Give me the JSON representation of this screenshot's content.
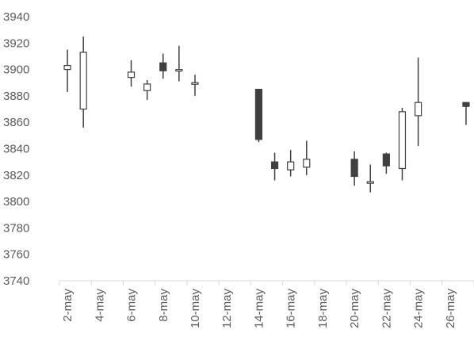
{
  "chart_data": {
    "type": "candlestick",
    "title": "",
    "xlabel": "",
    "ylabel": "",
    "ylim": [
      3740,
      3940
    ],
    "yticks": [
      3740,
      3760,
      3780,
      3800,
      3820,
      3840,
      3860,
      3880,
      3900,
      3920,
      3940
    ],
    "ytick_labels": [
      "3740",
      "3760",
      "3780",
      "3800",
      "3820",
      "3840",
      "3860",
      "3880",
      "3900",
      "3920",
      "3940"
    ],
    "x_categories": [
      "2-may",
      "3-may",
      "4-may",
      "5-may",
      "6-may",
      "7-may",
      "8-may",
      "9-may",
      "10-may",
      "11-may",
      "12-may",
      "13-may",
      "14-may",
      "15-may",
      "16-may",
      "17-may",
      "18-may",
      "19-may",
      "20-may",
      "21-may",
      "22-may",
      "23-may",
      "24-may",
      "25-may",
      "26-may",
      "27-may"
    ],
    "xtick_labels": [
      "2-may",
      "4-may",
      "6-may",
      "8-may",
      "10-may",
      "12-may",
      "14-may",
      "16-may",
      "18-may",
      "20-may",
      "22-may",
      "24-may",
      "26-may"
    ],
    "grid": false,
    "colors": {
      "up_fill": "#ffffff",
      "down_fill": "#404040",
      "line": "#404040",
      "axis": "#d9d9d9",
      "text": "#595959"
    },
    "candles": [
      {
        "date": "2-may",
        "open": 3900,
        "high": 3915,
        "low": 3883,
        "close": 3903
      },
      {
        "date": "3-may",
        "open": 3870,
        "high": 3925,
        "low": 3856,
        "close": 3913
      },
      {
        "date": "6-may",
        "open": 3894,
        "high": 3907,
        "low": 3887,
        "close": 3898
      },
      {
        "date": "7-may",
        "open": 3884,
        "high": 3892,
        "low": 3877,
        "close": 3889
      },
      {
        "date": "8-may",
        "open": 3905,
        "high": 3912,
        "low": 3893,
        "close": 3899
      },
      {
        "date": "9-may",
        "open": 3899,
        "high": 3918,
        "low": 3891,
        "close": 3900
      },
      {
        "date": "10-may",
        "open": 3889,
        "high": 3896,
        "low": 3880,
        "close": 3890
      },
      {
        "date": "14-may",
        "open": 3885,
        "high": 3885,
        "low": 3845,
        "close": 3847
      },
      {
        "date": "15-may",
        "open": 3830,
        "high": 3837,
        "low": 3816,
        "close": 3825
      },
      {
        "date": "16-may",
        "open": 3824,
        "high": 3839,
        "low": 3819,
        "close": 3830
      },
      {
        "date": "17-may",
        "open": 3826,
        "high": 3846,
        "low": 3820,
        "close": 3832
      },
      {
        "date": "20-may",
        "open": 3832,
        "high": 3838,
        "low": 3812,
        "close": 3819
      },
      {
        "date": "21-may",
        "open": 3814,
        "high": 3828,
        "low": 3807,
        "close": 3815
      },
      {
        "date": "22-may",
        "open": 3836,
        "high": 3837,
        "low": 3821,
        "close": 3827
      },
      {
        "date": "23-may",
        "open": 3825,
        "high": 3871,
        "low": 3816,
        "close": 3868
      },
      {
        "date": "24-may",
        "open": 3865,
        "high": 3909,
        "low": 3842,
        "close": 3875
      },
      {
        "date": "27-may",
        "open": 3875,
        "high": 3875,
        "low": 3858,
        "close": 3872
      }
    ]
  }
}
